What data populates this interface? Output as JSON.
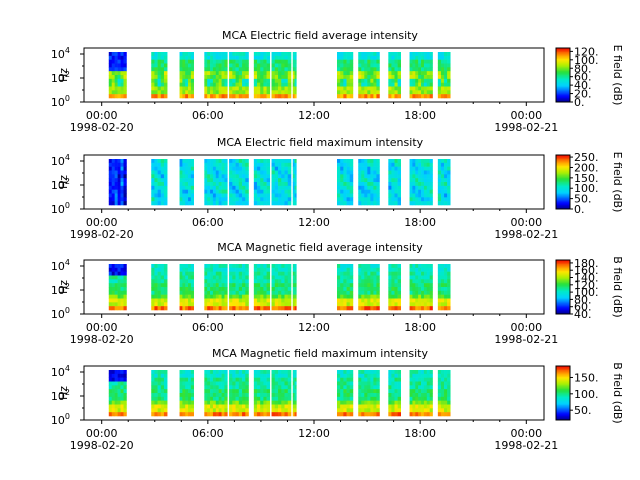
{
  "chart_data": [
    {
      "type": "heatmap",
      "title": "MCA  Electric field average intensity",
      "ylabel": "Hz",
      "ytick_labels": [
        "10^0",
        "10^2",
        "10^4"
      ],
      "ylim": [
        "10^0",
        "10^4.5"
      ],
      "xtick_labels": [
        "00:00",
        "06:00",
        "12:00",
        "18:00",
        "00:00"
      ],
      "xlim_hours": [
        -1,
        25
      ],
      "date_labels": [
        "1998-02-20",
        "1998-02-21"
      ],
      "colorbar_label": "E field (dB)",
      "colorbar_ticks": [
        "0.",
        "20.",
        "40.",
        "60.",
        "80.",
        "100.",
        "120."
      ],
      "colorbar_range": [
        0,
        128
      ],
      "data_segments_hours": [
        [
          0.4,
          1.4
        ],
        [
          2.8,
          3.7
        ],
        [
          4.4,
          5.2
        ],
        [
          5.8,
          7.1
        ],
        [
          7.2,
          8.3
        ],
        [
          8.6,
          9.5
        ],
        [
          9.6,
          10.7
        ],
        [
          10.8,
          11.0
        ],
        [
          13.3,
          14.2
        ],
        [
          14.5,
          15.7
        ],
        [
          16.2,
          16.9
        ],
        [
          17.4,
          18.7
        ],
        [
          19.0,
          19.7
        ]
      ],
      "style": "avg"
    },
    {
      "type": "heatmap",
      "title": "MCA  Electric field maximum intensity",
      "ylabel": "Hz",
      "ytick_labels": [
        "10^0",
        "10^2",
        "10^4"
      ],
      "ylim": [
        "10^0",
        "10^4.5"
      ],
      "xtick_labels": [
        "00:00",
        "06:00",
        "12:00",
        "18:00",
        "00:00"
      ],
      "xlim_hours": [
        -1,
        25
      ],
      "date_labels": [
        "1998-02-20",
        "1998-02-21"
      ],
      "colorbar_label": "E field (dB)",
      "colorbar_ticks": [
        "0.",
        "50.",
        "100.",
        "150.",
        "200.",
        "250."
      ],
      "colorbar_range": [
        0,
        260
      ],
      "data_segments_hours": [
        [
          0.4,
          1.4
        ],
        [
          2.8,
          3.7
        ],
        [
          4.4,
          5.2
        ],
        [
          5.8,
          7.1
        ],
        [
          7.2,
          8.3
        ],
        [
          8.6,
          9.5
        ],
        [
          9.6,
          10.7
        ],
        [
          10.8,
          11.0
        ],
        [
          13.3,
          14.2
        ],
        [
          14.5,
          15.7
        ],
        [
          16.2,
          16.9
        ],
        [
          17.4,
          18.7
        ],
        [
          19.0,
          19.7
        ]
      ],
      "style": "max"
    },
    {
      "type": "heatmap",
      "title": "MCA  Magnetic field average intensity",
      "ylabel": "Hz",
      "ytick_labels": [
        "10^0",
        "10^2",
        "10^4"
      ],
      "ylim": [
        "10^0",
        "10^4.5"
      ],
      "xtick_labels": [
        "00:00",
        "06:00",
        "12:00",
        "18:00",
        "00:00"
      ],
      "xlim_hours": [
        -1,
        25
      ],
      "date_labels": [
        "1998-02-20",
        "1998-02-21"
      ],
      "colorbar_label": "B field (dB)",
      "colorbar_ticks": [
        "40.",
        "60.",
        "80.",
        "100.",
        "120.",
        "140.",
        "160.",
        "180."
      ],
      "colorbar_range": [
        40,
        188
      ],
      "data_segments_hours": [
        [
          0.4,
          1.4
        ],
        [
          2.8,
          3.7
        ],
        [
          4.4,
          5.2
        ],
        [
          5.8,
          7.1
        ],
        [
          7.2,
          8.3
        ],
        [
          8.6,
          9.5
        ],
        [
          9.6,
          10.7
        ],
        [
          10.8,
          11.0
        ],
        [
          13.3,
          14.2
        ],
        [
          14.5,
          15.7
        ],
        [
          16.2,
          16.9
        ],
        [
          17.4,
          18.7
        ],
        [
          19.0,
          19.7
        ]
      ],
      "style": "mag"
    },
    {
      "type": "heatmap",
      "title": "MCA  Magnetic field maximum intensity",
      "ylabel": "Hz",
      "ytick_labels": [
        "10^0",
        "10^2",
        "10^4"
      ],
      "ylim": [
        "10^0",
        "10^4.5"
      ],
      "xtick_labels": [
        "00:00",
        "06:00",
        "12:00",
        "18:00",
        "00:00"
      ],
      "xlim_hours": [
        -1,
        25
      ],
      "date_labels": [
        "1998-02-20",
        "1998-02-21"
      ],
      "colorbar_label": "B field (dB)",
      "colorbar_ticks": [
        "50.",
        "100.",
        "150."
      ],
      "colorbar_range": [
        20,
        185
      ],
      "data_segments_hours": [
        [
          0.4,
          1.4
        ],
        [
          2.8,
          3.7
        ],
        [
          4.4,
          5.2
        ],
        [
          5.8,
          7.1
        ],
        [
          7.2,
          8.3
        ],
        [
          8.6,
          9.5
        ],
        [
          9.6,
          10.7
        ],
        [
          10.8,
          11.0
        ],
        [
          13.3,
          14.2
        ],
        [
          14.5,
          15.7
        ],
        [
          16.2,
          16.9
        ],
        [
          17.4,
          18.7
        ],
        [
          19.0,
          19.7
        ]
      ],
      "style": "mag"
    }
  ]
}
